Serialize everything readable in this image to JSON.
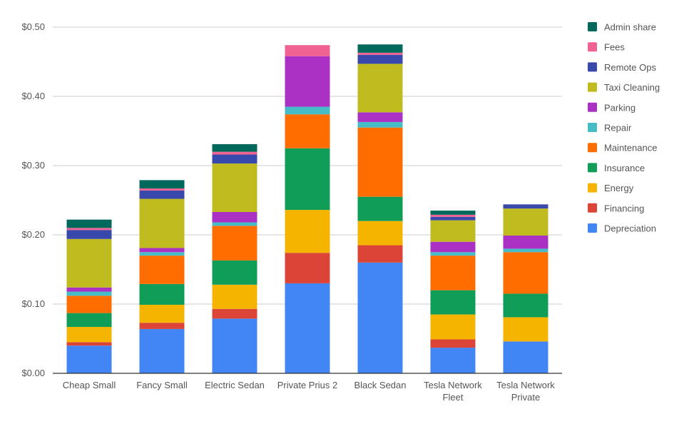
{
  "chart_data": {
    "type": "bar",
    "stacked": true,
    "title": "",
    "xlabel": "",
    "ylabel": "",
    "ylim": [
      0,
      0.5
    ],
    "yticks": [
      "$0.00",
      "$0.10",
      "$0.20",
      "$0.30",
      "$0.40",
      "$0.50"
    ],
    "grid": true,
    "legend_position": "right",
    "categories": [
      [
        "Cheap Small"
      ],
      [
        "Fancy Small"
      ],
      [
        "Electric Sedan"
      ],
      [
        "Private Prius 2"
      ],
      [
        "Black Sedan"
      ],
      [
        "Tesla Network",
        "Fleet"
      ],
      [
        "Tesla Network",
        "Private"
      ]
    ],
    "series": [
      {
        "name": "Depreciation",
        "color": "#4285f4",
        "values": [
          0.04,
          0.064,
          0.079,
          0.13,
          0.16,
          0.037,
          0.046
        ]
      },
      {
        "name": "Financing",
        "color": "#db4437",
        "values": [
          0.005,
          0.009,
          0.014,
          0.044,
          0.025,
          0.012,
          0.0
        ]
      },
      {
        "name": "Energy",
        "color": "#f4b400",
        "values": [
          0.022,
          0.026,
          0.035,
          0.062,
          0.035,
          0.036,
          0.035
        ]
      },
      {
        "name": "Insurance",
        "color": "#0f9d58",
        "values": [
          0.02,
          0.03,
          0.035,
          0.089,
          0.035,
          0.035,
          0.034
        ]
      },
      {
        "name": "Maintenance",
        "color": "#ff6d00",
        "values": [
          0.025,
          0.041,
          0.05,
          0.049,
          0.1,
          0.05,
          0.06
        ]
      },
      {
        "name": "Repair",
        "color": "#46bdc6",
        "values": [
          0.006,
          0.005,
          0.005,
          0.011,
          0.008,
          0.005,
          0.005
        ]
      },
      {
        "name": "Parking",
        "color": "#ab30c4",
        "values": [
          0.006,
          0.006,
          0.015,
          0.073,
          0.014,
          0.015,
          0.019
        ]
      },
      {
        "name": "Taxi Cleaning",
        "color": "#c0bc1f",
        "values": [
          0.07,
          0.071,
          0.07,
          0.0,
          0.07,
          0.031,
          0.039
        ]
      },
      {
        "name": "Remote Ops",
        "color": "#3949ab",
        "values": [
          0.013,
          0.012,
          0.013,
          0.0,
          0.013,
          0.005,
          0.006
        ]
      },
      {
        "name": "Fees",
        "color": "#f06292",
        "values": [
          0.003,
          0.003,
          0.004,
          0.016,
          0.003,
          0.003,
          0.0
        ]
      },
      {
        "name": "Admin share",
        "color": "#00695c",
        "values": [
          0.012,
          0.012,
          0.011,
          0.0,
          0.012,
          0.006,
          0.0
        ]
      }
    ]
  }
}
